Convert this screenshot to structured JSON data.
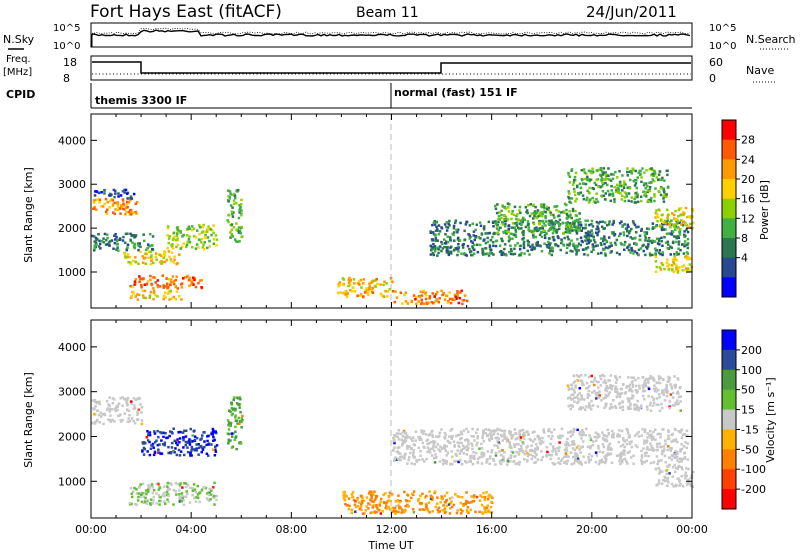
{
  "header": {
    "title": "Fort Hays East (fitACF)",
    "beam": "Beam 11",
    "date": "24/Jun/2011"
  },
  "noise_panel": {
    "left_label": "N.Sky",
    "right_label": "N.Search",
    "left_ticks": [
      "10^5",
      "10^0"
    ],
    "right_ticks": [
      "10^5",
      "10^0"
    ]
  },
  "freq_panel": {
    "left_label_1": "Freq.",
    "left_label_2": "[MHz]",
    "right_label": "Nave",
    "left_ticks": [
      "18",
      "8"
    ],
    "right_ticks": [
      "60",
      "0"
    ]
  },
  "cpid_panel": {
    "label": "CPID",
    "modes": [
      "themis 3300 IF",
      "normal (fast) 151 IF"
    ]
  },
  "chart_data": [
    {
      "type": "heatmap",
      "title": "",
      "xlabel": "",
      "ylabel": "Slant Range [km]",
      "xlim": [
        0,
        24
      ],
      "ylim": [
        180,
        4600
      ],
      "yticks": [
        "1000",
        "2000",
        "3000",
        "4000"
      ],
      "colorbar": {
        "label": "Power [dB]",
        "ticks": [
          "28",
          "24",
          "20",
          "16",
          "12",
          "8",
          "4"
        ],
        "colors": [
          "#ff0000",
          "#ff5a00",
          "#ff9900",
          "#ffd000",
          "#8cd000",
          "#40b040",
          "#2a7850",
          "#284890",
          "#0000ff"
        ]
      },
      "regions": [
        {
          "x": [
            0.0,
            1.8
          ],
          "y": [
            2300,
            2700
          ],
          "level": 24
        },
        {
          "x": [
            0.0,
            1.7
          ],
          "y": [
            2700,
            2900
          ],
          "level": 4
        },
        {
          "x": [
            0.0,
            2.5
          ],
          "y": [
            1500,
            1900
          ],
          "level": 8
        },
        {
          "x": [
            1.2,
            3.5
          ],
          "y": [
            1200,
            1500
          ],
          "level": 20
        },
        {
          "x": [
            3.0,
            5.0
          ],
          "y": [
            1550,
            2100
          ],
          "level": 16
        },
        {
          "x": [
            1.5,
            4.5
          ],
          "y": [
            650,
            950
          ],
          "level": 26
        },
        {
          "x": [
            1.5,
            3.6
          ],
          "y": [
            400,
            600
          ],
          "level": 20
        },
        {
          "x": [
            5.4,
            6.0
          ],
          "y": [
            1700,
            2900
          ],
          "level": 12
        },
        {
          "x": [
            9.8,
            12.0
          ],
          "y": [
            450,
            900
          ],
          "level": 22
        },
        {
          "x": [
            12.0,
            15.0
          ],
          "y": [
            300,
            600
          ],
          "level": 26
        },
        {
          "x": [
            13.5,
            23.8
          ],
          "y": [
            1400,
            2200
          ],
          "level": 8
        },
        {
          "x": [
            16.0,
            19.5
          ],
          "y": [
            1900,
            2600
          ],
          "level": 12
        },
        {
          "x": [
            19.0,
            23.0
          ],
          "y": [
            2600,
            3400
          ],
          "level": 12
        },
        {
          "x": [
            22.5,
            24.0
          ],
          "y": [
            1000,
            1400
          ],
          "level": 20
        },
        {
          "x": [
            22.5,
            24.0
          ],
          "y": [
            2000,
            2500
          ],
          "level": 20
        }
      ]
    },
    {
      "type": "heatmap",
      "title": "",
      "xlabel": "Time UT",
      "ylabel": "Slant Range [km]",
      "xlim": [
        0,
        24
      ],
      "ylim": [
        180,
        4600
      ],
      "xticks": [
        "00:00",
        "04:00",
        "08:00",
        "12:00",
        "16:00",
        "20:00",
        "00:00"
      ],
      "yticks": [
        "1000",
        "2000",
        "3000",
        "4000"
      ],
      "colorbar": {
        "label": "Velocity [m s⁻¹]",
        "ticks": [
          "200",
          "100",
          "50",
          "15",
          "-15",
          "-50",
          "-100",
          "-200"
        ],
        "colors": [
          "#0000ff",
          "#2a4a9a",
          "#4a9a40",
          "#60c030",
          "#c8c8c8",
          "#ffb000",
          "#ff8000",
          "#ff4000",
          "#ff0000"
        ]
      },
      "regions": [
        {
          "x": [
            0.0,
            2.0
          ],
          "y": [
            2300,
            2900
          ],
          "class": "low"
        },
        {
          "x": [
            2.0,
            5.0
          ],
          "y": [
            1600,
            2200
          ],
          "class": "pos_high"
        },
        {
          "x": [
            5.4,
            6.0
          ],
          "y": [
            1700,
            2900
          ],
          "class": "pos_mid"
        },
        {
          "x": [
            1.5,
            5.0
          ],
          "y": [
            500,
            1000
          ],
          "class": "pos_low"
        },
        {
          "x": [
            10.0,
            16.0
          ],
          "y": [
            300,
            800
          ],
          "class": "neg_low"
        },
        {
          "x": [
            12.0,
            23.8
          ],
          "y": [
            1400,
            2200
          ],
          "class": "low"
        },
        {
          "x": [
            19.0,
            23.5
          ],
          "y": [
            2600,
            3400
          ],
          "class": "low"
        },
        {
          "x": [
            22.5,
            24.0
          ],
          "y": [
            900,
            1400
          ],
          "class": "low"
        }
      ]
    }
  ]
}
